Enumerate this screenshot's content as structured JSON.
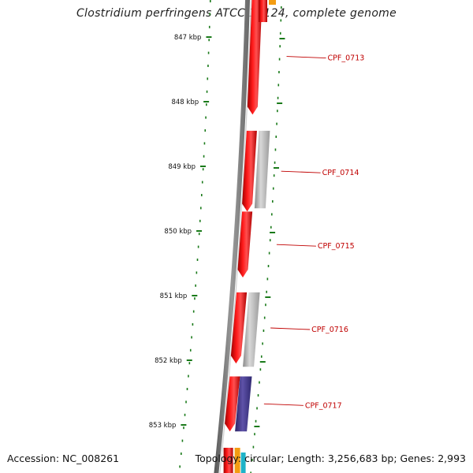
{
  "title": "Clostridium perfringens ATCC 13124, complete genome",
  "footer": {
    "accession_label": "Accession: NC_008261",
    "topology_label": "Topology: circular; Length: 3,256,683 bp; Genes: 2,993"
  },
  "scale": {
    "ticks": [
      {
        "label": "847 kbp",
        "kbp": 847
      },
      {
        "label": "848 kbp",
        "kbp": 848
      },
      {
        "label": "849 kbp",
        "kbp": 849
      },
      {
        "label": "850 kbp",
        "kbp": 850
      },
      {
        "label": "851 kbp",
        "kbp": 851
      },
      {
        "label": "852 kbp",
        "kbp": 852
      },
      {
        "label": "853 kbp",
        "kbp": 853
      }
    ]
  },
  "genes": [
    {
      "label": "CPF_0713",
      "start_kbp": 846.4,
      "end_kbp": 848.2,
      "track": "red"
    },
    {
      "label": "CPF_0714",
      "start_kbp": 848.45,
      "end_kbp": 849.7,
      "track": "red"
    },
    {
      "label": "",
      "start_kbp": 848.45,
      "end_kbp": 849.65,
      "track": "gray"
    },
    {
      "label": "CPF_0715",
      "start_kbp": 849.7,
      "end_kbp": 850.72,
      "track": "red"
    },
    {
      "label": "CPF_0716",
      "start_kbp": 850.95,
      "end_kbp": 852.05,
      "track": "red"
    },
    {
      "label": "",
      "start_kbp": 850.95,
      "end_kbp": 852.1,
      "track": "gray"
    },
    {
      "label": "CPF_0717",
      "start_kbp": 852.25,
      "end_kbp": 853.1,
      "track": "red"
    },
    {
      "label": "",
      "start_kbp": 852.25,
      "end_kbp": 853.1,
      "track": "purple"
    }
  ],
  "colors": {
    "gene_label": "#c00000",
    "cds_red": "#ee0000",
    "cds_gray": "#b8b8b8",
    "cds_purple": "#4b3f8f",
    "ticks": "#1a7a1a",
    "backbone": "#777777"
  }
}
